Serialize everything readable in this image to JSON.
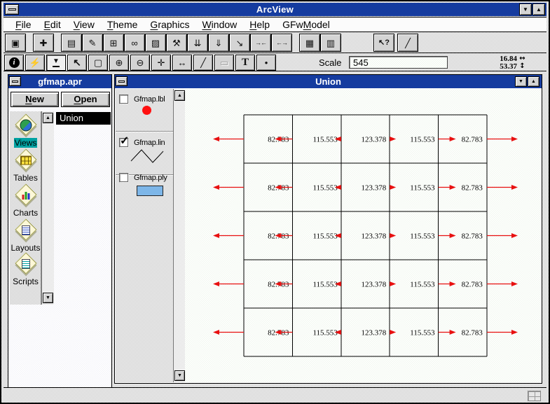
{
  "window": {
    "title": "ArcView"
  },
  "menu": {
    "items": [
      {
        "label": "File",
        "mnemonic": 0
      },
      {
        "label": "Edit",
        "mnemonic": 0
      },
      {
        "label": "View",
        "mnemonic": 0
      },
      {
        "label": "Theme",
        "mnemonic": 0
      },
      {
        "label": "Graphics",
        "mnemonic": 0
      },
      {
        "label": "Window",
        "mnemonic": 0
      },
      {
        "label": "Help",
        "mnemonic": 0
      },
      {
        "label": "GFwModel",
        "mnemonic": 3
      }
    ]
  },
  "toolbar_top": {
    "buttons": [
      {
        "name": "save-project",
        "icon": "diskette-icon",
        "glyph": "▣",
        "gap": 0
      },
      {
        "name": "add-theme",
        "icon": "plus-theme-icon",
        "glyph": "✚",
        "gap": 10
      },
      {
        "name": "theme-properties",
        "icon": "properties-sheet-icon",
        "glyph": "▤",
        "gap": 10
      },
      {
        "name": "edit-legend",
        "icon": "pen-icon",
        "glyph": "✎",
        "gap": 0
      },
      {
        "name": "open-theme-table",
        "icon": "table-grid-icon",
        "glyph": "⊞",
        "gap": 0
      },
      {
        "name": "find",
        "icon": "binoculars-icon",
        "glyph": "∞",
        "gap": 0
      },
      {
        "name": "locate",
        "icon": "hatch-arrow-icon",
        "glyph": "▨",
        "gap": 0
      },
      {
        "name": "query-builder",
        "icon": "hammer-question-icon",
        "glyph": "⚒",
        "gap": 0
      },
      {
        "name": "zoom-full-extent",
        "icon": "layers-arrow-icon",
        "glyph": "⇊",
        "gap": 0
      },
      {
        "name": "zoom-active-theme",
        "icon": "layer-arrow-icon",
        "glyph": "⇓",
        "gap": 0
      },
      {
        "name": "zoom-selected",
        "icon": "sheet-corner-arrow-icon",
        "glyph": "↘",
        "gap": 0
      },
      {
        "name": "zoom-in",
        "icon": "arrows-inward-icon",
        "glyph": "→←",
        "gap": 0
      },
      {
        "name": "zoom-out",
        "icon": "arrows-outward-icon",
        "glyph": "←→",
        "gap": 0
      },
      {
        "name": "select-by-graphics",
        "icon": "dashed-selection-icon",
        "glyph": "▦",
        "gap": 10
      },
      {
        "name": "theme-visibility",
        "icon": "list-box-icon",
        "glyph": "▥",
        "gap": 0
      },
      {
        "name": "help-pointer",
        "icon": "cursor-question-icon",
        "glyph": "↖?",
        "gap": 46
      },
      {
        "name": "draw-line",
        "icon": "pencil-stroke-icon",
        "glyph": "╱",
        "gap": 4
      }
    ]
  },
  "toolbar_tools": {
    "buttons": [
      {
        "name": "identify-tool",
        "icon": "info-circle-icon",
        "glyph": "i",
        "pressed": false,
        "disabled": false
      },
      {
        "name": "hotlink-tool",
        "icon": "lightning-icon",
        "glyph": "⚡",
        "pressed": false,
        "disabled": false
      },
      {
        "name": "tool-dropdown",
        "icon": "down-triangle-icon",
        "glyph": "▼",
        "pressed": true,
        "disabled": false
      },
      {
        "name": "pointer-tool",
        "icon": "cursor-arrow-icon",
        "glyph": "↖",
        "pressed": false,
        "disabled": false
      },
      {
        "name": "vertex-edit-tool",
        "icon": "dashed-square-icon",
        "glyph": "▢",
        "pressed": false,
        "disabled": false
      },
      {
        "name": "zoom-in-tool",
        "icon": "magnifier-plus-icon",
        "glyph": "⊕",
        "pressed": false,
        "disabled": false
      },
      {
        "name": "zoom-out-tool",
        "icon": "magnifier-minus-icon",
        "glyph": "⊖",
        "pressed": false,
        "disabled": false
      },
      {
        "name": "pan-tool",
        "icon": "hand-move-icon",
        "glyph": "✛",
        "pressed": false,
        "disabled": false
      },
      {
        "name": "measure-tool",
        "icon": "ruler-icon",
        "glyph": "↔",
        "pressed": false,
        "disabled": false
      },
      {
        "name": "draw-tool",
        "icon": "diagonal-line-icon",
        "glyph": "╱",
        "pressed": false,
        "disabled": false
      },
      {
        "name": "callout-tool",
        "icon": "callout-box-icon",
        "glyph": "▭",
        "pressed": false,
        "disabled": true
      },
      {
        "name": "text-tool",
        "icon": "text-T-icon",
        "glyph": "T",
        "pressed": false,
        "disabled": false
      },
      {
        "name": "point-tool",
        "icon": "dot-icon",
        "glyph": "•",
        "pressed": false,
        "disabled": false
      }
    ],
    "scale_label": "Scale",
    "scale_value": "545",
    "coord_x": "16.84",
    "coord_y": "53.37",
    "coord_x_icon": "horizontal-arrows-icon",
    "coord_y_icon": "vertical-arrows-icon",
    "coord_x_glyph": "↔",
    "coord_y_glyph": "↕"
  },
  "project_window": {
    "title": "gfmap.apr",
    "buttons": [
      {
        "name": "new-button",
        "label": "New",
        "mnemonic": 0
      },
      {
        "name": "open-button",
        "label": "Open",
        "mnemonic": 0
      }
    ],
    "categories": [
      {
        "name": "views",
        "label": "Views",
        "selected": true
      },
      {
        "name": "tables",
        "label": "Tables",
        "selected": false
      },
      {
        "name": "charts",
        "label": "Charts",
        "selected": false
      },
      {
        "name": "layouts",
        "label": "Layouts",
        "selected": false
      },
      {
        "name": "scripts",
        "label": "Scripts",
        "selected": false
      }
    ],
    "documents": [
      {
        "label": "Union",
        "selected": true
      }
    ]
  },
  "view_window": {
    "title": "Union",
    "legend": [
      {
        "name": "gfmap-lbl",
        "label": "Gfmap.lbl",
        "checked": false,
        "symbol": "point",
        "symbol_color": "#ff1010"
      },
      {
        "name": "gfmap-lin",
        "label": "Gfmap.lin",
        "checked": true,
        "symbol": "line",
        "symbol_color": "#000000"
      },
      {
        "name": "gfmap-ply",
        "label": "Gfmap.ply",
        "checked": false,
        "symbol": "polygon",
        "symbol_color": "#7db6e8"
      }
    ]
  },
  "map": {
    "rows": 5,
    "cols": 5,
    "cell_values": [
      [
        82.783,
        115.553,
        123.378,
        115.553,
        82.783
      ],
      [
        82.783,
        115.553,
        123.378,
        115.553,
        82.783
      ],
      [
        82.783,
        115.553,
        123.378,
        115.553,
        82.783
      ],
      [
        82.783,
        115.553,
        123.378,
        115.553,
        82.783
      ],
      [
        82.783,
        115.553,
        123.378,
        115.553,
        82.783
      ]
    ],
    "flow_arrows_per_row": [
      {
        "boundary": 0,
        "direction": "left",
        "length": 44
      },
      {
        "boundary": 1,
        "direction": "left",
        "length": 25
      },
      {
        "boundary": 2,
        "direction": "left",
        "length": 9
      },
      {
        "boundary": 3,
        "direction": "right",
        "length": 9
      },
      {
        "boundary": 4,
        "direction": "right",
        "length": 25
      },
      {
        "boundary": 5,
        "direction": "right",
        "length": 44
      }
    ],
    "arrow_color": "#e81010",
    "grid_line_color": "#000000"
  },
  "colors": {
    "titlebar_blue": "#12359c",
    "titlebar_text": "#ffffff",
    "category_highlight": "#00a2a2",
    "selection_bg": "#000000",
    "selection_text": "#ffffff",
    "arrow_red": "#e81010",
    "polygon_fill": "#7db6e8",
    "point_red": "#ff1010"
  }
}
